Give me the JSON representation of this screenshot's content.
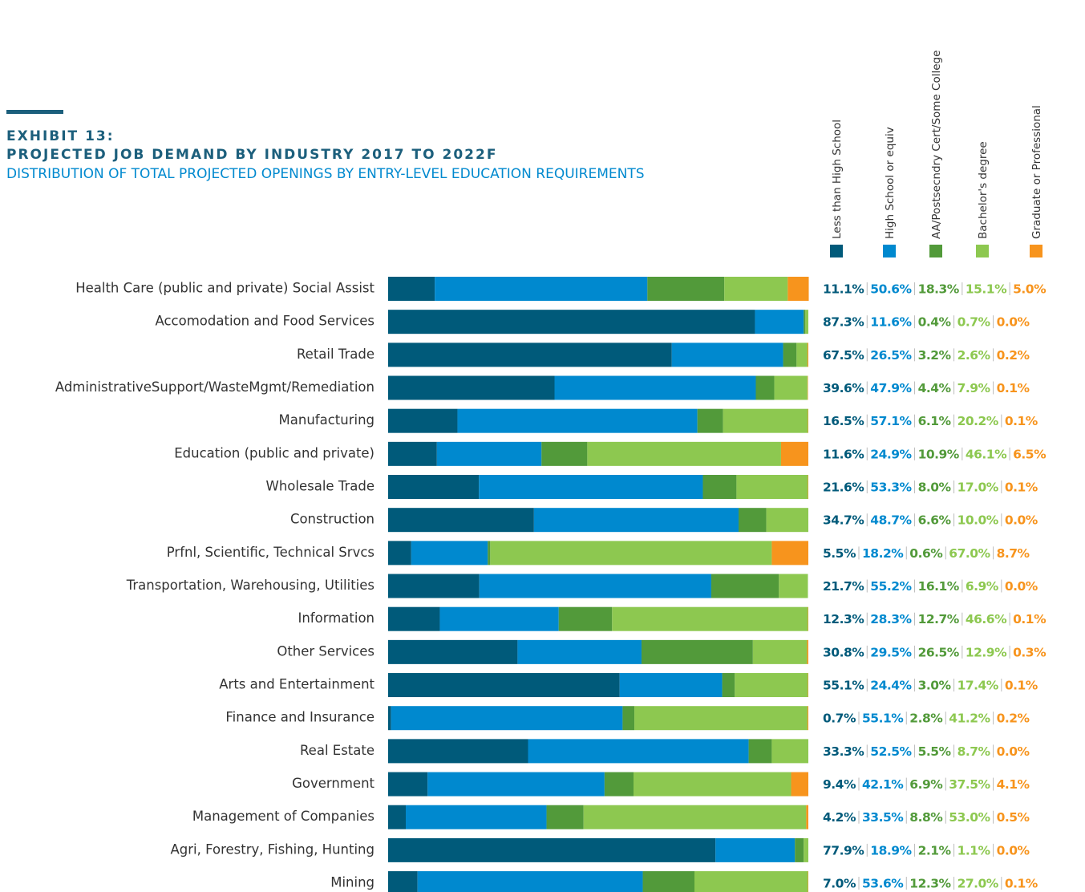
{
  "chart_data": {
    "type": "stacked-bar-horizontal",
    "title": "EXHIBIT 13:",
    "title_line2": "PROJECTED JOB DEMAND BY INDUSTRY 2017 TO 2022F",
    "subtitle": "DISTRIBUTION OF TOTAL PROJECTED OPENINGS BY ENTRY-LEVEL EDUCATION REQUIREMENTS",
    "xlim": [
      0,
      100
    ],
    "categories": [
      "Health Care (public and private) Social Assist",
      "Accomodation and Food Services",
      "Retail Trade",
      "AdministrativeSupport/WasteMgmt/Remediation",
      "Manufacturing",
      "Education (public and private)",
      "Wholesale Trade",
      "Construction",
      "Prfnl, Scientific, Technical Srvcs",
      "Transportation, Warehousing, Utilities",
      "Information",
      "Other Services",
      "Arts and  Entertainment",
      "Finance and Insurance",
      "Real Estate",
      "Government",
      "Management of Companies",
      "Agri, Forestry, Fishing, Hunting",
      "Mining"
    ],
    "series": [
      {
        "name": "Less than High School",
        "color": "#005a7a",
        "values": [
          11.1,
          87.3,
          67.5,
          39.6,
          16.5,
          11.6,
          21.6,
          34.7,
          5.5,
          21.7,
          12.3,
          30.8,
          55.1,
          0.7,
          33.3,
          9.4,
          4.2,
          77.9,
          7.0
        ],
        "value_labels": [
          "11.1%",
          "87.3%",
          "67.5%",
          "39.6%",
          "16.5%",
          "11.6%",
          "21.6%",
          "34.7%",
          "5.5%",
          "21.7%",
          "12.3%",
          "30.8%",
          "55.1%",
          "0.7%",
          "33.3%",
          "9.4%",
          "4.2%",
          "77.9%",
          "7.0%"
        ]
      },
      {
        "name": "High School or equiv",
        "color": "#0089cf",
        "values": [
          50.6,
          11.6,
          26.5,
          47.9,
          57.1,
          24.9,
          53.3,
          48.7,
          18.2,
          55.2,
          28.3,
          29.5,
          24.4,
          55.1,
          52.5,
          42.1,
          33.5,
          18.9,
          53.6
        ],
        "value_labels": [
          "50.6%",
          "11.6%",
          "26.5%",
          "47.9%",
          "57.1%",
          "24.9%",
          "53.3%",
          "48.7%",
          "18.2%",
          "55.2%",
          "28.3%",
          "29.5%",
          "24.4%",
          "55.1%",
          "52.5%",
          "42.1%",
          "33.5%",
          "18.9%",
          "53.6%"
        ]
      },
      {
        "name": "AA/Postsecndry Cert/Some College",
        "color": "#529a3a",
        "values": [
          18.3,
          0.4,
          3.2,
          4.4,
          6.1,
          10.9,
          8.0,
          6.6,
          0.6,
          16.1,
          12.7,
          26.5,
          3.0,
          2.8,
          5.5,
          6.9,
          8.8,
          2.1,
          12.3
        ],
        "value_labels": [
          "18.3%",
          "0.4%",
          "3.2%",
          "4.4%",
          "6.1%",
          "10.9%",
          "8.0%",
          "6.6%",
          "0.6%",
          "16.1%",
          "12.7%",
          "26.5%",
          "3.0%",
          "2.8%",
          "5.5%",
          "6.9%",
          "8.8%",
          "2.1%",
          "12.3%"
        ]
      },
      {
        "name": "Bachelor's degree",
        "color": "#8dc850",
        "values": [
          15.1,
          0.7,
          2.6,
          7.9,
          20.2,
          46.1,
          17.0,
          10.0,
          67.0,
          6.9,
          46.6,
          12.9,
          17.4,
          41.2,
          8.7,
          37.5,
          53.0,
          1.1,
          27.0
        ],
        "value_labels": [
          "15.1%",
          "0.7%",
          "2.6%",
          "7.9%",
          "20.2%",
          "46.1%",
          "17.0%",
          "10.0%",
          "67.0%",
          "6.9%",
          "46.6%",
          "12.9%",
          "17.4%",
          "41.2%",
          "8.7%",
          "37.5%",
          "53.0%",
          "1.1%",
          "27.0%"
        ]
      },
      {
        "name": "Graduate or Professional",
        "color": "#f7941d",
        "values": [
          5.0,
          0.0,
          0.2,
          0.1,
          0.1,
          6.5,
          0.1,
          0.0,
          8.7,
          0.0,
          0.1,
          0.3,
          0.1,
          0.2,
          0.0,
          4.1,
          0.5,
          0.0,
          0.1
        ],
        "value_labels": [
          "5.0%",
          "0.0%",
          "0.2%",
          "0.1%",
          "0.1%",
          "6.5%",
          "0.1%",
          "0.0%",
          "8.7%",
          "0.0%",
          "0.1%",
          "0.3%",
          "0.1%",
          "0.2%",
          "0.0%",
          "4.1%",
          "0.5%",
          "0.0%",
          "0.1%"
        ]
      }
    ]
  }
}
